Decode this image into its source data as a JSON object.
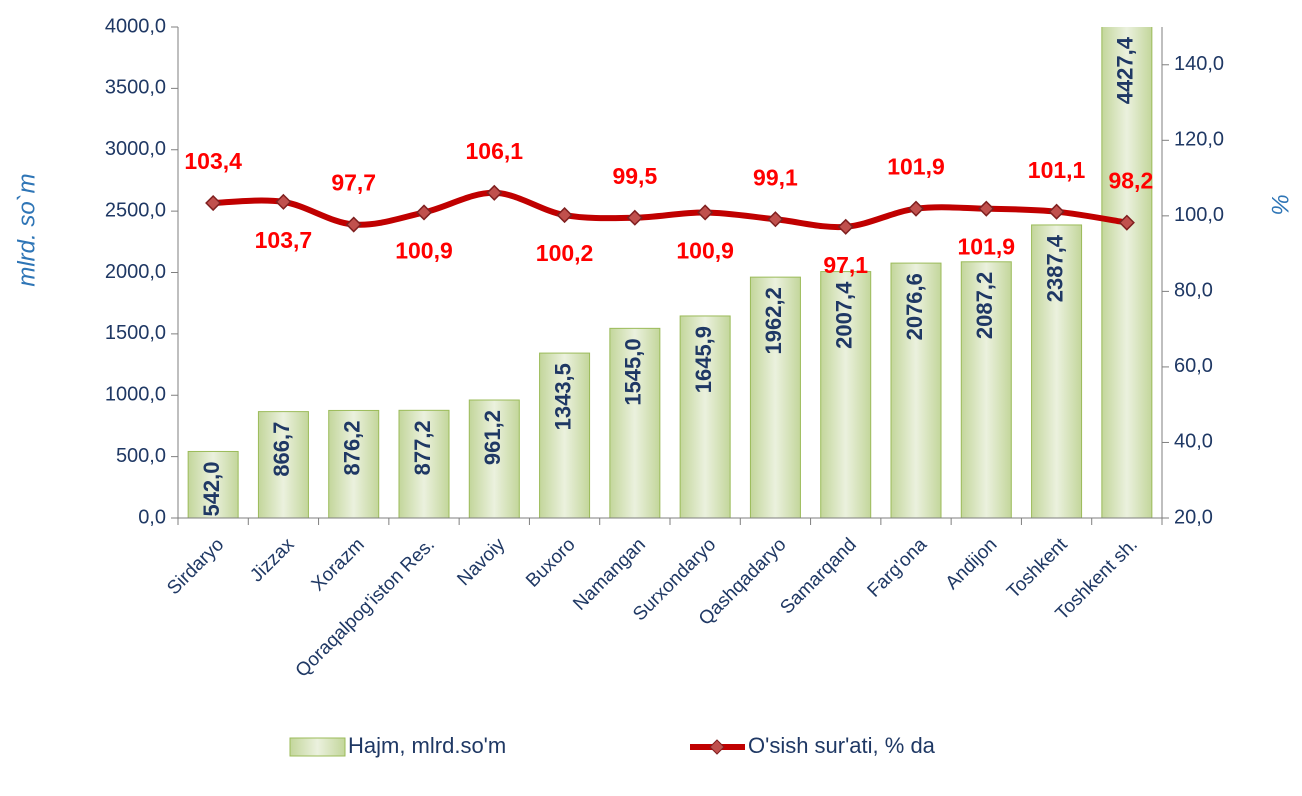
{
  "chart_data": {
    "type": "combo",
    "y_label": "mlrd. so`m",
    "y2_label": "%",
    "categories": [
      "Sirdaryo",
      "Jizzax",
      "Xorazm",
      "Qoraqalpog'iston Res.",
      "Navoiy",
      "Buxoro",
      "Namangan",
      "Surxondaryo",
      "Qashqadaryo",
      "Samarqand",
      "Farg'ona",
      "Andijon",
      "Toshkent",
      "Toshkent sh."
    ],
    "series": [
      {
        "name": "Hajm, mlrd.so'm",
        "type": "bar",
        "color": "#d7e4bd",
        "values": [
          542.0,
          866.7,
          876.2,
          877.2,
          961.2,
          1343.5,
          1545.0,
          1645.9,
          1962.2,
          2007.4,
          2076.6,
          2087.2,
          2387.4,
          4427.4
        ],
        "value_labels": [
          "542,0",
          "866,7",
          "876,2",
          "877,2",
          "961,2",
          "1343,5",
          "1545,0",
          "1645,9",
          "1962,2",
          "2007,4",
          "2076,6",
          "2087,2",
          "2387,4",
          "4427,4"
        ]
      },
      {
        "name": "O'sish sur'ati, % da",
        "type": "line",
        "axis": "y2",
        "color": "#c00000",
        "values": [
          103.4,
          103.7,
          97.7,
          100.9,
          106.1,
          100.2,
          99.5,
          100.9,
          99.1,
          97.1,
          101.9,
          101.9,
          101.1,
          98.2
        ],
        "value_labels": [
          "103,4",
          "103,7",
          "97,7",
          "100,9",
          "106,1",
          "100,2",
          "99,5",
          "100,9",
          "99,1",
          "97,1",
          "101,9",
          "101,9",
          "101,1",
          "98,2"
        ]
      }
    ],
    "ylim": [
      0,
      4000
    ],
    "yticks": [
      {
        "value": 0,
        "label": "0,0"
      },
      {
        "value": 500,
        "label": "500,0"
      },
      {
        "value": 1000,
        "label": "1000,0"
      },
      {
        "value": 1500,
        "label": "1500,0"
      },
      {
        "value": 2000,
        "label": "2000,0"
      },
      {
        "value": 2500,
        "label": "2500,0"
      },
      {
        "value": 3000,
        "label": "3000,0"
      },
      {
        "value": 3500,
        "label": "3500,0"
      },
      {
        "value": 4000,
        "label": "4000,0"
      }
    ],
    "y2lim": [
      20,
      150
    ],
    "y2ticks": [
      {
        "value": 20,
        "label": "20,0"
      },
      {
        "value": 40,
        "label": "40,0"
      },
      {
        "value": 60,
        "label": "60,0"
      },
      {
        "value": 80,
        "label": "80,0"
      },
      {
        "value": 100,
        "label": "100,0"
      },
      {
        "value": 120,
        "label": "120,0"
      },
      {
        "value": 140,
        "label": "140,0"
      }
    ],
    "legend": "bottom"
  }
}
